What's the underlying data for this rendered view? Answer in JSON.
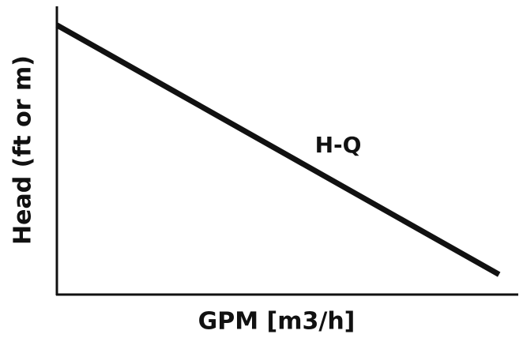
{
  "chart_data": {
    "type": "line",
    "x_label": "GPM [m3/h]",
    "y_label": "Head (ft or m)",
    "annotation": "H-Q",
    "x": [
      0,
      96
    ],
    "series": [
      {
        "name": "H-Q",
        "color": "#111111",
        "values": [
          94,
          7
        ]
      }
    ],
    "xlim": [
      0,
      100
    ],
    "ylim": [
      0,
      100
    ]
  }
}
